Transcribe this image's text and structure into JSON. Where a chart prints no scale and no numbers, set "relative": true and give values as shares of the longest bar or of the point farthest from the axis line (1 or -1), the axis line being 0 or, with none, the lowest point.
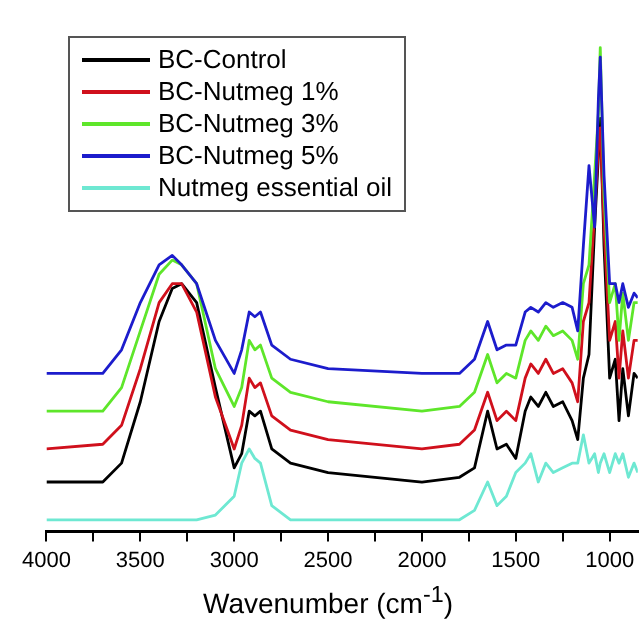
{
  "chart_data": {
    "type": "line",
    "relative": true,
    "xlabel": "Wavenumber (cm$^{-1}$)",
    "legend": "top left",
    "grid": false,
    "marker": "none",
    "line_style": "solid",
    "xlim": [
      4000,
      850
    ],
    "xticks": [
      4000,
      {
        "value": 3750,
        "label": null
      },
      3500,
      {
        "value": 3250,
        "label": null
      },
      3000,
      {
        "value": 2750,
        "label": null
      },
      2500,
      {
        "value": 2250,
        "label": null
      },
      2000,
      {
        "value": 1750,
        "label": null
      },
      1500,
      {
        "value": 1250,
        "label": null
      },
      1000
    ],
    "x": [
      4000,
      3700,
      3600,
      3500,
      3400,
      3330,
      3280,
      3200,
      3100,
      3000,
      2960,
      2920,
      2890,
      2860,
      2800,
      2700,
      2500,
      2000,
      1800,
      1720,
      1650,
      1600,
      1550,
      1500,
      1450,
      1420,
      1380,
      1340,
      1300,
      1250,
      1200,
      1170,
      1140,
      1110,
      1080,
      1060,
      1050,
      1030,
      1000,
      970,
      950,
      930,
      900,
      870,
      850
    ],
    "series": [
      {
        "name": "BC-Control",
        "color": "#000000",
        "values": [
          0.08,
          0.08,
          0.12,
          0.25,
          0.42,
          0.49,
          0.5,
          0.46,
          0.28,
          0.11,
          0.14,
          0.23,
          0.22,
          0.23,
          0.15,
          0.12,
          0.1,
          0.08,
          0.09,
          0.11,
          0.23,
          0.15,
          0.16,
          0.13,
          0.23,
          0.26,
          0.24,
          0.27,
          0.24,
          0.25,
          0.21,
          0.17,
          0.3,
          0.35,
          0.62,
          0.77,
          0.85,
          0.58,
          0.3,
          0.34,
          0.21,
          0.32,
          0.22,
          0.31,
          0.3
        ]
      },
      {
        "name": "BC-Nutmeg 1%",
        "color": "#d0101c",
        "values": [
          0.15,
          0.16,
          0.2,
          0.32,
          0.46,
          0.5,
          0.5,
          0.44,
          0.26,
          0.15,
          0.2,
          0.3,
          0.28,
          0.29,
          0.22,
          0.19,
          0.17,
          0.15,
          0.16,
          0.19,
          0.27,
          0.21,
          0.23,
          0.21,
          0.3,
          0.33,
          0.31,
          0.34,
          0.31,
          0.32,
          0.29,
          0.25,
          0.42,
          0.46,
          0.65,
          0.79,
          0.83,
          0.62,
          0.38,
          0.42,
          0.3,
          0.4,
          0.3,
          0.38,
          0.38
        ]
      },
      {
        "name": "BC-Nutmeg 3%",
        "color": "#5ee62a",
        "values": [
          0.23,
          0.23,
          0.28,
          0.4,
          0.52,
          0.55,
          0.54,
          0.5,
          0.32,
          0.24,
          0.28,
          0.38,
          0.36,
          0.37,
          0.3,
          0.27,
          0.25,
          0.23,
          0.24,
          0.27,
          0.35,
          0.29,
          0.31,
          0.3,
          0.38,
          0.4,
          0.38,
          0.41,
          0.39,
          0.4,
          0.38,
          0.34,
          0.5,
          0.54,
          0.73,
          0.86,
          1.0,
          0.69,
          0.46,
          0.5,
          0.38,
          0.48,
          0.38,
          0.46,
          0.46
        ]
      },
      {
        "name": "BC-Nutmeg 5%",
        "color": "#1c1ccc",
        "values": [
          0.31,
          0.31,
          0.36,
          0.46,
          0.54,
          0.56,
          0.54,
          0.5,
          0.38,
          0.31,
          0.36,
          0.44,
          0.43,
          0.44,
          0.37,
          0.34,
          0.32,
          0.31,
          0.31,
          0.34,
          0.42,
          0.36,
          0.37,
          0.37,
          0.44,
          0.45,
          0.44,
          0.46,
          0.45,
          0.46,
          0.45,
          0.4,
          0.58,
          0.75,
          0.62,
          0.89,
          0.98,
          0.73,
          0.5,
          0.5,
          0.46,
          0.5,
          0.45,
          0.48,
          0.47
        ]
      },
      {
        "name": "Nutmeg essential oil",
        "color": "#6ee8d2",
        "values": [
          0,
          0,
          0,
          0,
          0,
          0,
          0,
          0,
          0.01,
          0.05,
          0.12,
          0.15,
          0.13,
          0.12,
          0.03,
          0.0,
          0,
          0,
          0,
          0.02,
          0.08,
          0.03,
          0.05,
          0.1,
          0.12,
          0.14,
          0.08,
          0.12,
          0.1,
          0.11,
          0.12,
          0.12,
          0.18,
          0.12,
          0.14,
          0.1,
          0.12,
          0.14,
          0.1,
          0.14,
          0.12,
          0.14,
          0.09,
          0.12,
          0.1
        ]
      }
    ]
  }
}
